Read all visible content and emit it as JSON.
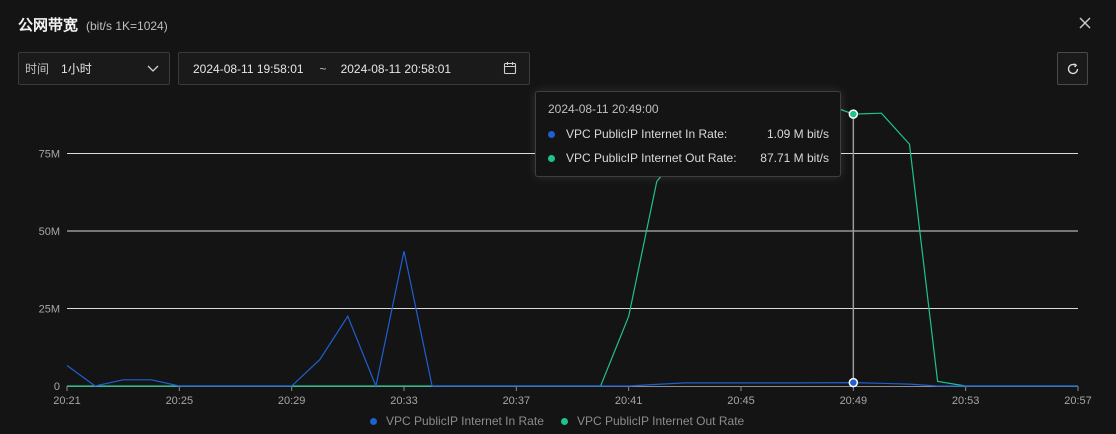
{
  "header": {
    "title": "公网带宽",
    "subtitle": "(bit/s  1K=1024)"
  },
  "toolbar": {
    "time_label": "时间",
    "time_value": "1小时",
    "date_start": "2024-08-11 19:58:01",
    "date_separator": "~",
    "date_end": "2024-08-11 20:58:01"
  },
  "colors": {
    "in_rate": "#1f5fd1",
    "out_rate": "#1fc28e"
  },
  "icons": {
    "close": "close-icon",
    "chevron": "chevron-down-icon",
    "calendar": "calendar-icon",
    "refresh": "refresh-icon"
  },
  "tooltip": {
    "time": "2024-08-11 20:49:00",
    "rows": [
      {
        "name": "VPC PublicIP Internet In Rate:",
        "value": "1.09 M bit/s"
      },
      {
        "name": "VPC PublicIP Internet Out Rate:",
        "value": "87.71 M bit/s"
      }
    ]
  },
  "chart_data": {
    "type": "line",
    "x_tick_labels": [
      "20:21",
      "20:25",
      "20:29",
      "20:33",
      "20:37",
      "20:41",
      "20:45",
      "20:49",
      "20:53",
      "20:57"
    ],
    "y_tick_labels": [
      "0",
      "25M",
      "50M",
      "75M"
    ],
    "ylim": [
      0,
      100
    ],
    "xlim": [
      0,
      36
    ],
    "grid": true,
    "legend_position": "bottom",
    "series": [
      {
        "name": "VPC PublicIP Internet In Rate",
        "points": [
          [
            0,
            6.6
          ],
          [
            1,
            0
          ],
          [
            2,
            2
          ],
          [
            3,
            2
          ],
          [
            4,
            0
          ],
          [
            8,
            0
          ],
          [
            9,
            8.5
          ],
          [
            10,
            22.5
          ],
          [
            11,
            0
          ],
          [
            12,
            43.5
          ],
          [
            13,
            0
          ],
          [
            20,
            0
          ],
          [
            21,
            0.5
          ],
          [
            22,
            1
          ],
          [
            26,
            1
          ],
          [
            28,
            1.09
          ],
          [
            30,
            0.6
          ],
          [
            31,
            0
          ],
          [
            36,
            0
          ]
        ]
      },
      {
        "name": "VPC PublicIP Internet Out Rate",
        "points": [
          [
            0,
            0
          ],
          [
            19,
            0
          ],
          [
            20,
            22.5
          ],
          [
            21,
            66
          ],
          [
            23,
            88
          ],
          [
            24,
            89
          ],
          [
            25,
            89
          ],
          [
            26,
            90
          ],
          [
            27,
            91
          ],
          [
            28,
            87.71
          ],
          [
            29,
            88
          ],
          [
            30,
            78
          ],
          [
            31,
            1.5
          ],
          [
            32,
            0
          ],
          [
            36,
            0
          ]
        ]
      }
    ],
    "hover_index": 28
  },
  "legend": [
    {
      "name": "VPC PublicIP Internet In Rate"
    },
    {
      "name": "VPC PublicIP Internet Out Rate"
    }
  ]
}
